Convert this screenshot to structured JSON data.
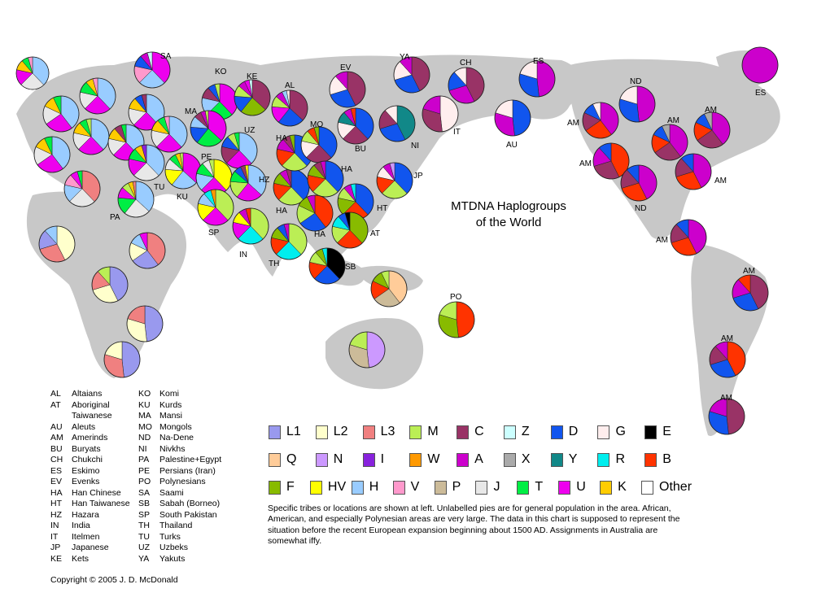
{
  "title_line1": "MTDNA Haplogroups",
  "title_line2": "of the World",
  "copyright": "Copyright © 2005 J. D. McDonald",
  "note": "Specific tribes or locations are shown at left. Unlabelled pies are for general population in the area. African, American, and especially Polynesian areas are very large. The data in this chart is supposed to represent the situation before the recent European expansion beginning about 1500 AD. Assignments in Australia are somewhat iffy.",
  "abbreviations_col1": [
    {
      "code": "AL",
      "name": "Altaians"
    },
    {
      "code": "AT",
      "name": "Aboriginal"
    },
    {
      "code": "",
      "name": "Taiwanese"
    },
    {
      "code": "AU",
      "name": "Aleuts"
    },
    {
      "code": "AM",
      "name": "Amerinds"
    },
    {
      "code": "BU",
      "name": "Buryats"
    },
    {
      "code": "CH",
      "name": "Chukchi"
    },
    {
      "code": "ES",
      "name": "Eskimo"
    },
    {
      "code": "EV",
      "name": "Evenks"
    },
    {
      "code": "HA",
      "name": "Han Chinese"
    },
    {
      "code": "HT",
      "name": "Han Taiwanese"
    },
    {
      "code": "HZ",
      "name": "Hazara"
    },
    {
      "code": "IN",
      "name": "India"
    },
    {
      "code": "IT",
      "name": "Itelmen"
    },
    {
      "code": "JP",
      "name": "Japanese"
    },
    {
      "code": "KE",
      "name": "Kets"
    }
  ],
  "abbreviations_col2": [
    {
      "code": "KO",
      "name": "Komi"
    },
    {
      "code": "KU",
      "name": "Kurds"
    },
    {
      "code": "MA",
      "name": "Mansi"
    },
    {
      "code": "MO",
      "name": "Mongols"
    },
    {
      "code": "ND",
      "name": "Na-Dene"
    },
    {
      "code": "NI",
      "name": "Nivkhs"
    },
    {
      "code": "PA",
      "name": "Palestine+Egypt"
    },
    {
      "code": "PE",
      "name": "Persians (Iran)"
    },
    {
      "code": "PO",
      "name": "Polynesians"
    },
    {
      "code": "SA",
      "name": "Saami"
    },
    {
      "code": "SB",
      "name": "Sabah (Borneo)"
    },
    {
      "code": "SP",
      "name": "South Pakistan"
    },
    {
      "code": "TH",
      "name": "Thailand"
    },
    {
      "code": "TU",
      "name": "Turks"
    },
    {
      "code": "UZ",
      "name": "Uzbeks"
    },
    {
      "code": "YA",
      "name": "Yakuts"
    }
  ],
  "haplogroups": [
    [
      {
        "label": "L1",
        "color": "#9999ee"
      },
      {
        "label": "L2",
        "color": "#ffffcc"
      },
      {
        "label": "L3",
        "color": "#f08080"
      },
      {
        "label": "M",
        "color": "#bbee55"
      },
      {
        "label": "C",
        "color": "#993366"
      },
      {
        "label": "Z",
        "color": "#ccffff"
      },
      {
        "label": "D",
        "color": "#1155ee"
      },
      {
        "label": "G",
        "color": "#ffeeee"
      },
      {
        "label": "E",
        "color": "#000000"
      }
    ],
    [
      {
        "label": "Q",
        "color": "#ffcc99"
      },
      {
        "label": "N",
        "color": "#cc99ff"
      },
      {
        "label": "I",
        "color": "#8822dd"
      },
      {
        "label": "W",
        "color": "#ff9900"
      },
      {
        "label": "A",
        "color": "#cc00cc"
      },
      {
        "label": "X",
        "color": "#aaaaaa"
      },
      {
        "label": "Y",
        "color": "#118888"
      },
      {
        "label": "R",
        "color": "#00eeee"
      },
      {
        "label": "B",
        "color": "#ff3300"
      }
    ],
    [
      {
        "label": "F",
        "color": "#88bb00"
      },
      {
        "label": "HV",
        "color": "#ffff00"
      },
      {
        "label": "H",
        "color": "#99ccff"
      },
      {
        "label": "V",
        "color": "#ff99cc"
      },
      {
        "label": "P",
        "color": "#ccbb99"
      },
      {
        "label": "J",
        "color": "#e8e8e8"
      },
      {
        "label": "T",
        "color": "#00ee44"
      },
      {
        "label": "U",
        "color": "#ee00ee"
      },
      {
        "label": "K",
        "color": "#ffcc00"
      },
      {
        "label": "Other",
        "color": "#ffffff"
      }
    ]
  ],
  "region_labels": [
    {
      "text": "SA"
    },
    {
      "text": "KO"
    },
    {
      "text": "KE"
    },
    {
      "text": "AL"
    },
    {
      "text": "EV"
    },
    {
      "text": "YA"
    },
    {
      "text": "CH"
    },
    {
      "text": "ES"
    },
    {
      "text": "ES"
    },
    {
      "text": "ND"
    },
    {
      "text": "AM"
    },
    {
      "text": "AM"
    },
    {
      "text": "AM"
    },
    {
      "text": "MA"
    },
    {
      "text": "UZ"
    },
    {
      "text": "MO"
    },
    {
      "text": "HA"
    },
    {
      "text": "HA"
    },
    {
      "text": "JP"
    },
    {
      "text": "NI"
    },
    {
      "text": "IT"
    },
    {
      "text": "AU"
    },
    {
      "text": "BU"
    },
    {
      "text": "PE"
    },
    {
      "text": "TU"
    },
    {
      "text": "KU"
    },
    {
      "text": "PA"
    },
    {
      "text": "HZ"
    },
    {
      "text": "HA"
    },
    {
      "text": "HT"
    },
    {
      "text": "HA"
    },
    {
      "text": "AT"
    },
    {
      "text": "SP"
    },
    {
      "text": "IN"
    },
    {
      "text": "TH"
    },
    {
      "text": "SB"
    },
    {
      "text": "PO"
    },
    {
      "text": "AM"
    },
    {
      "text": "AM"
    },
    {
      "text": "AM"
    },
    {
      "text": "AM"
    },
    {
      "text": "ND"
    },
    {
      "text": "AM"
    },
    {
      "text": "AM"
    }
  ]
}
